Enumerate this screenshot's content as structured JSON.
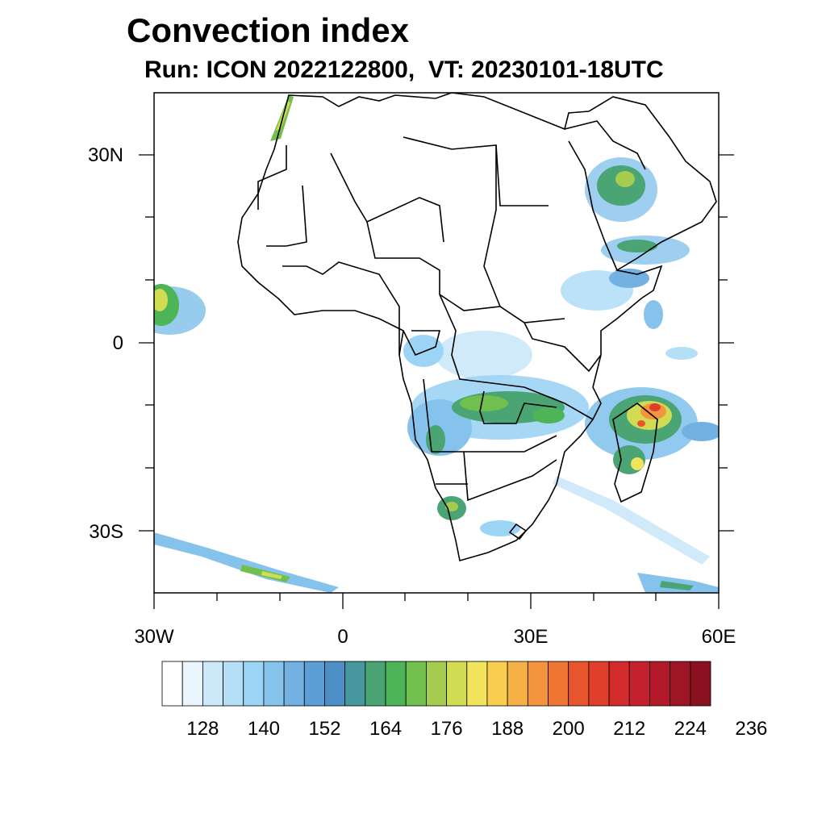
{
  "title": "Convection index",
  "subtitle": "Run: ICON 2022122800,  VT: 20230101-18UTC",
  "map": {
    "region": "Africa",
    "lon_range": [
      -30,
      60
    ],
    "lat_range": [
      -40,
      40
    ],
    "lat_labels": [
      "30N",
      "0",
      "30S"
    ],
    "lon_labels": [
      "30W",
      "0",
      "30E",
      "60E"
    ]
  },
  "colorbar": {
    "tick_labels": [
      "128",
      "140",
      "152",
      "164",
      "176",
      "188",
      "200",
      "212",
      "224",
      "236"
    ],
    "colors": [
      "#ffffff",
      "#eaf5fd",
      "#cce8f9",
      "#b4dff7",
      "#9cd4f5",
      "#86c3ec",
      "#72b1e2",
      "#5c9fd6",
      "#4b8fc6",
      "#47989e",
      "#4aa474",
      "#4db557",
      "#71bf4f",
      "#a5cc4f",
      "#d2dc52",
      "#f1e35c",
      "#f9cd4f",
      "#f6b146",
      "#f4943c",
      "#ef7533",
      "#e8552c",
      "#df3f2a",
      "#d42c2c",
      "#c5202d",
      "#b1192a",
      "#9e1526",
      "#8a1220"
    ]
  }
}
